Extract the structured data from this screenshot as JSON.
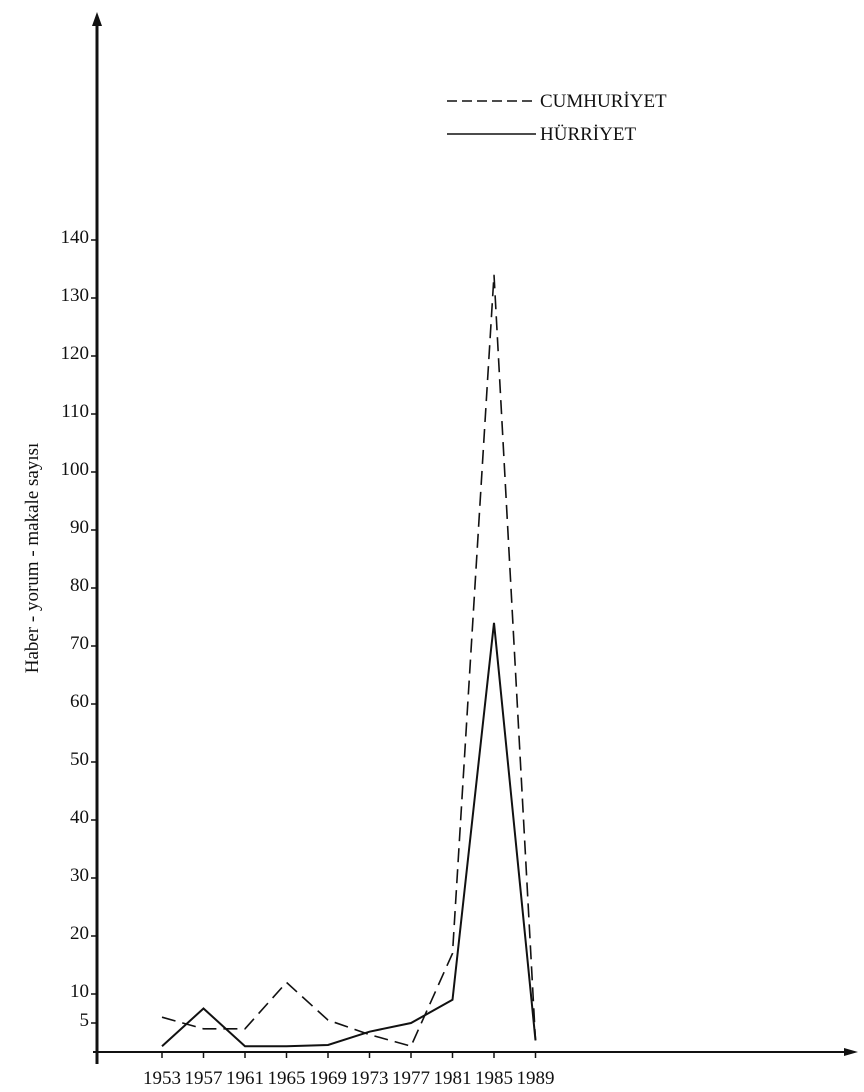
{
  "chart_data": {
    "type": "line",
    "title": "",
    "xlabel": "",
    "ylabel": "Haber - yorum - makale sayısı",
    "x": [
      1953,
      1957,
      1961,
      1965,
      1969,
      1973,
      1977,
      1981,
      1985,
      1989
    ],
    "x_tick_labels": [
      "1953",
      "1957",
      "1961",
      "1965",
      "1969",
      "1973",
      "1977",
      "1981",
      "1985",
      "1989"
    ],
    "y_ticks": [
      5,
      10,
      20,
      30,
      40,
      50,
      60,
      70,
      80,
      90,
      100,
      110,
      120,
      130,
      140
    ],
    "y_tick_labels": [
      "5",
      "10",
      "20",
      "30",
      "40",
      "50",
      "60",
      "70",
      "80",
      "90",
      "100",
      "110",
      "120",
      "130",
      "140"
    ],
    "ylim": [
      0,
      150
    ],
    "grid": false,
    "legend_position": "top-right",
    "series": [
      {
        "name": "CUMHURİYET",
        "style": "dashed",
        "color": "#111111",
        "values": [
          6,
          4,
          4,
          12,
          5.5,
          3,
          1,
          17,
          134,
          2
        ]
      },
      {
        "name": "HÜRRİYET",
        "style": "solid",
        "color": "#111111",
        "values": [
          1,
          7.5,
          1,
          1,
          1.2,
          3.5,
          5,
          9,
          74,
          2
        ]
      }
    ]
  }
}
